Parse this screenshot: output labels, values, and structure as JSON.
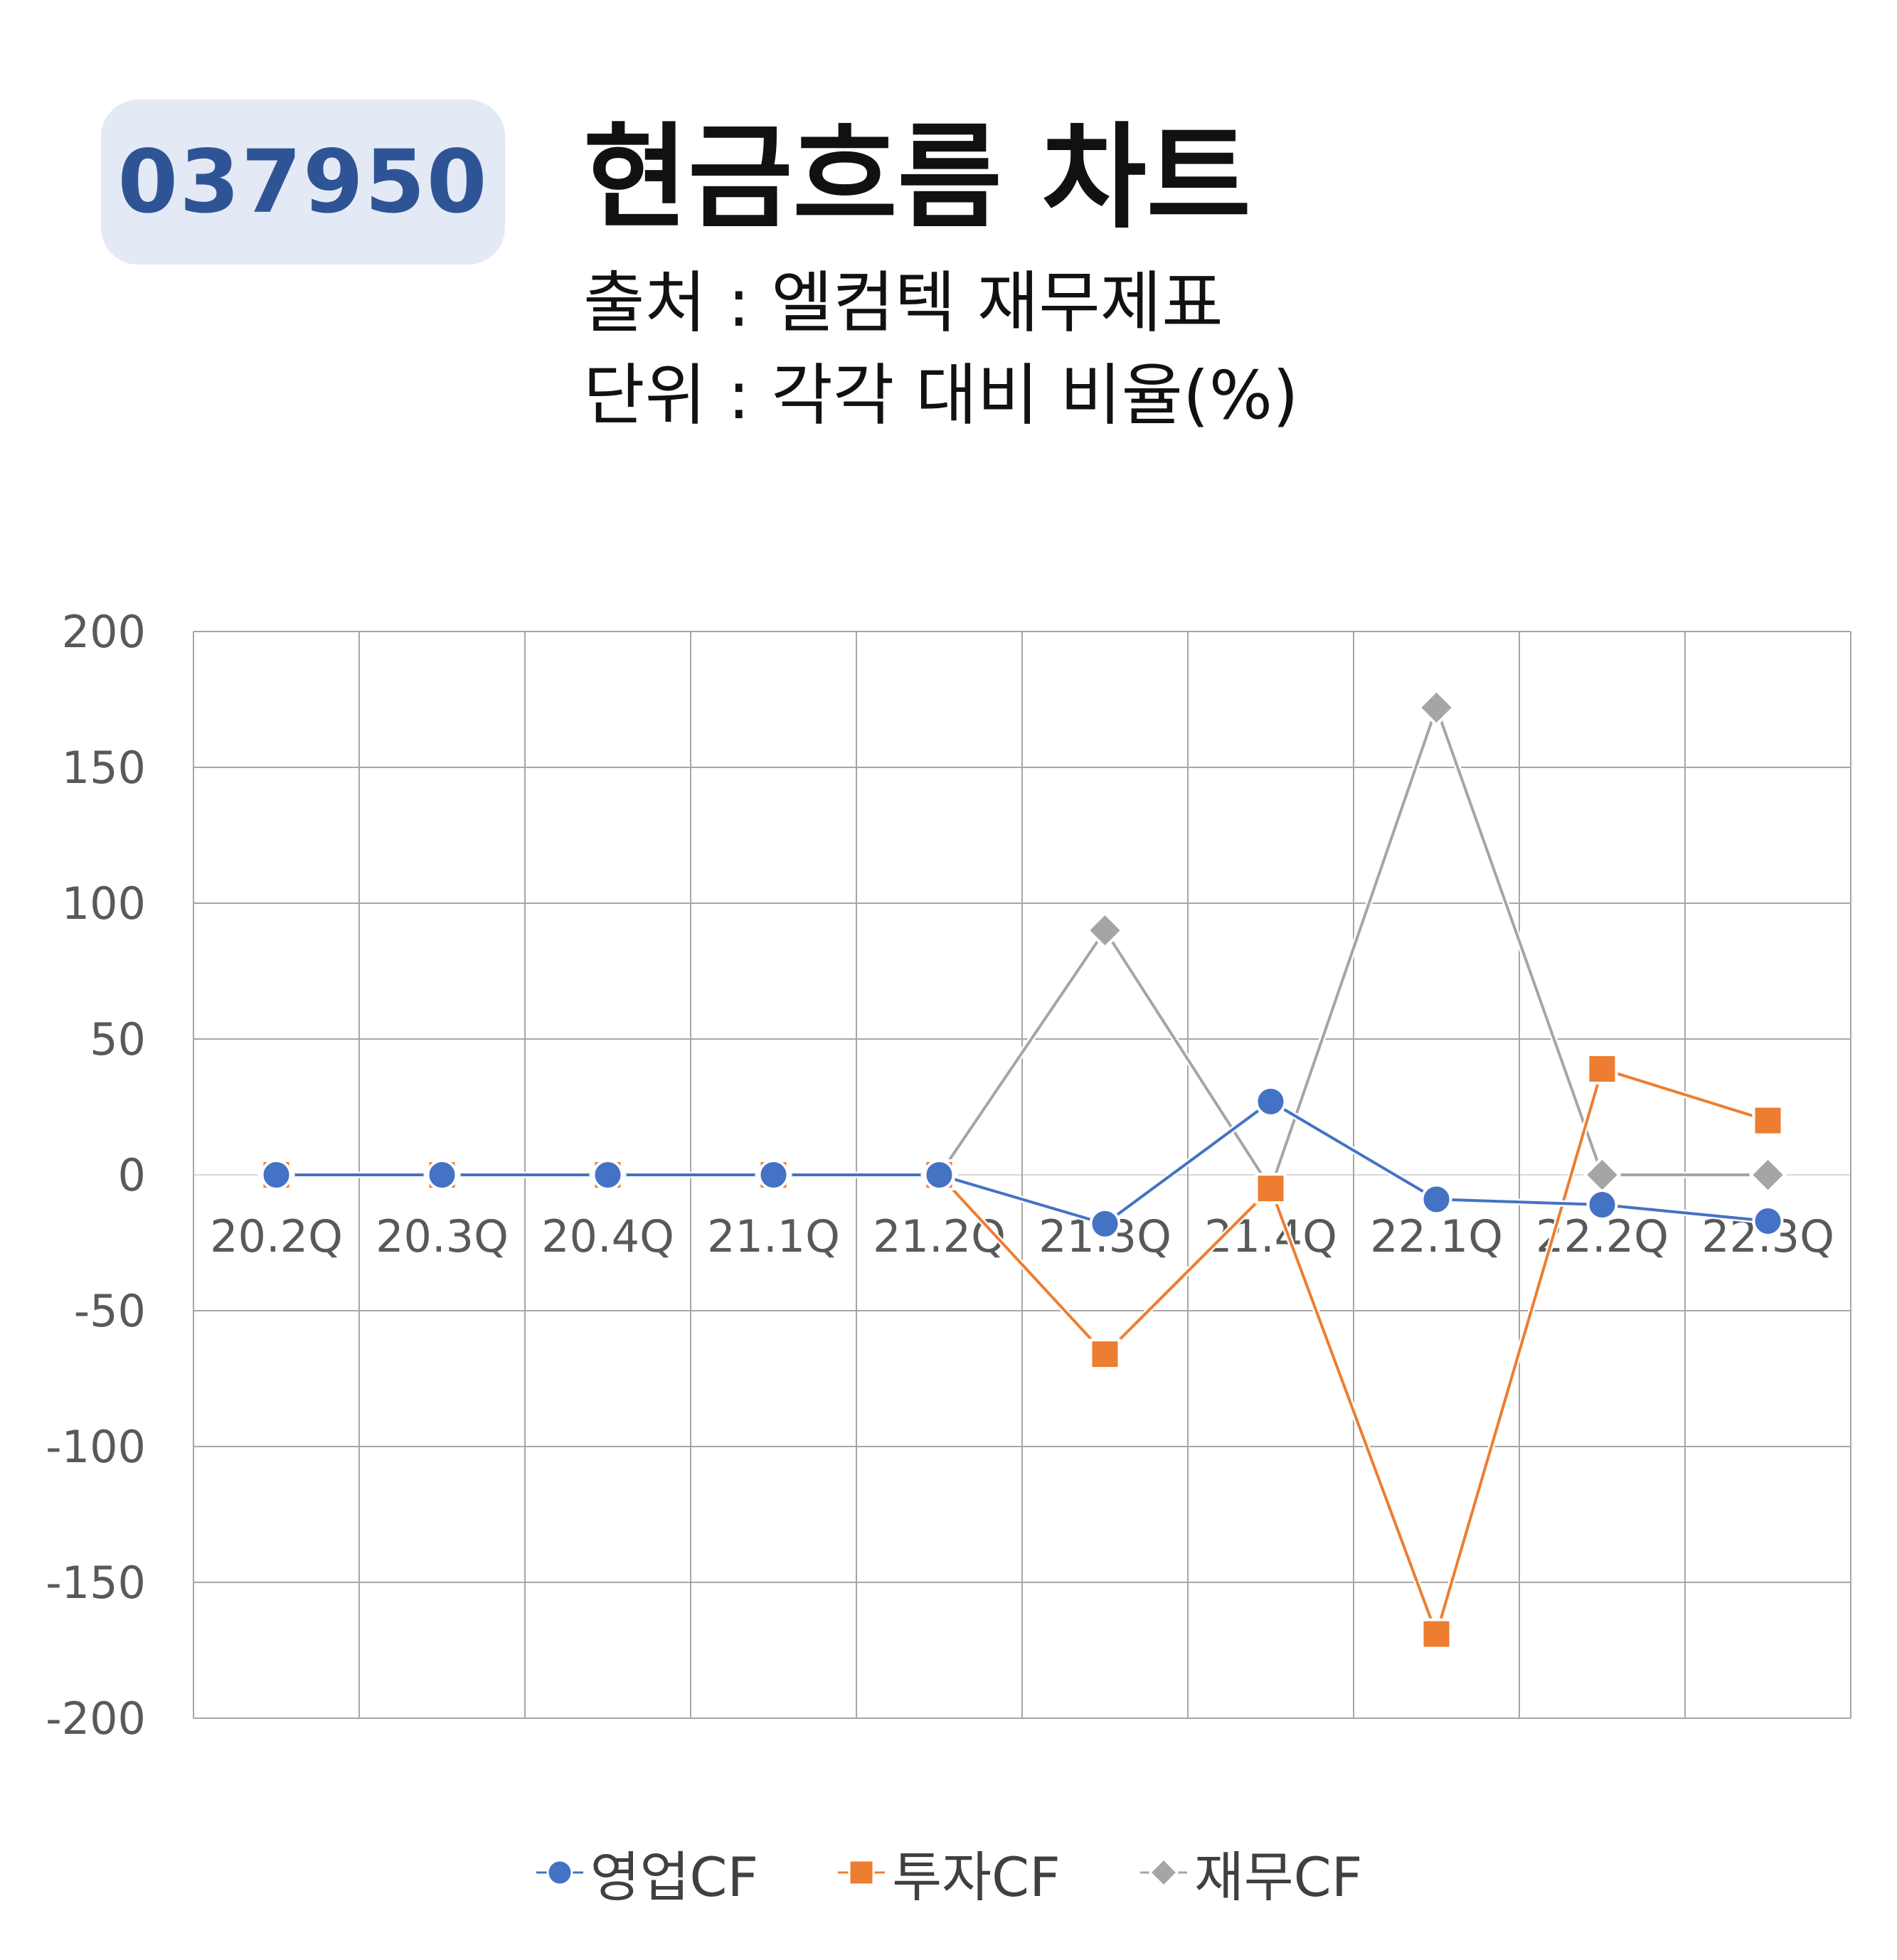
{
  "header": {
    "code": "037950",
    "title": "현금흐름 차트",
    "source": "출처 : 엘컴텍 재무제표",
    "unit": "단위 : 각각 대비 비율(%)"
  },
  "colors": {
    "badge_bg": "#e3e9f5",
    "badge_text": "#2f5496",
    "operating": "#4472c4",
    "investing": "#ed7d31",
    "financing": "#a5a5a5",
    "grid": "#a6a6a6"
  },
  "chart_data": {
    "type": "line",
    "categories": [
      "20.2Q",
      "20.3Q",
      "20.4Q",
      "21.1Q",
      "21.2Q",
      "21.3Q",
      "21.4Q",
      "22.1Q",
      "22.2Q",
      "22.3Q"
    ],
    "series": [
      {
        "name": "영업CF",
        "marker": "circle",
        "color": "#4472c4",
        "values": [
          0,
          0,
          0,
          0,
          0,
          -18,
          27,
          -9,
          -11,
          -17
        ]
      },
      {
        "name": "투자CF",
        "marker": "square",
        "color": "#ed7d31",
        "values": [
          0,
          0,
          0,
          0,
          0,
          -66,
          -5,
          -169,
          39,
          20
        ]
      },
      {
        "name": "재무CF",
        "marker": "diamond",
        "color": "#a5a5a5",
        "values": [
          0,
          0,
          0,
          0,
          0,
          90,
          -5,
          172,
          0,
          0
        ]
      }
    ],
    "ylim": [
      -200,
      200
    ],
    "yticks": [
      "200",
      "150",
      "100",
      "50",
      "0",
      "-50",
      "-100",
      "-150",
      "-200"
    ],
    "grid": true,
    "legend_position": "bottom"
  }
}
